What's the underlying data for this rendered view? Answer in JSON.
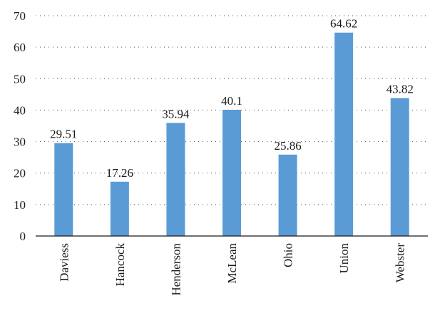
{
  "chart_data": {
    "type": "bar",
    "title": "",
    "xlabel": "",
    "ylabel": "",
    "categories": [
      "Daviess",
      "Hancock",
      "Henderson",
      "McLean",
      "Ohio",
      "Union",
      "Webster"
    ],
    "values": [
      29.51,
      17.26,
      35.94,
      40.1,
      25.86,
      64.62,
      43.82
    ],
    "value_labels": [
      "29.51",
      "17.26",
      "35.94",
      "40.1",
      "25.86",
      "64.62",
      "43.82"
    ],
    "y_ticks": [
      "0",
      "10",
      "20",
      "30",
      "40",
      "50",
      "60",
      "70"
    ],
    "ylim": [
      0,
      70
    ],
    "grid": true,
    "bar_color": "#5b9bd5"
  }
}
